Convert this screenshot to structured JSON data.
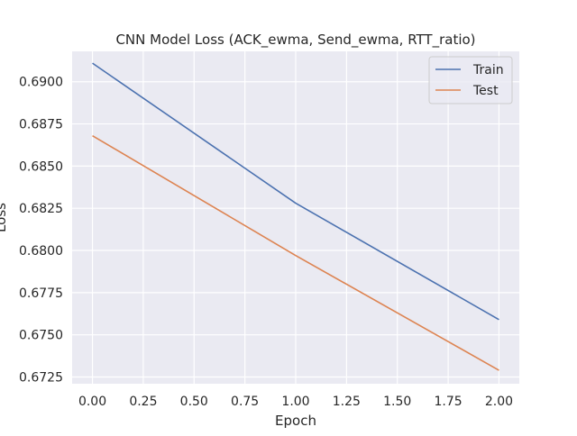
{
  "chart_data": {
    "type": "line",
    "title": "CNN Model Loss (ACK_ewma, Send_ewma, RTT_ratio)",
    "xlabel": "Epoch",
    "ylabel": "Loss",
    "x": [
      0,
      1,
      2
    ],
    "xlim": [
      -0.1,
      2.1
    ],
    "ylim": [
      0.6721,
      0.6918
    ],
    "xticks": [
      0.0,
      0.25,
      0.5,
      0.75,
      1.0,
      1.25,
      1.5,
      1.75,
      2.0
    ],
    "xtick_labels": [
      "0.00",
      "0.25",
      "0.50",
      "0.75",
      "1.00",
      "1.25",
      "1.50",
      "1.75",
      "2.00"
    ],
    "yticks": [
      0.6725,
      0.675,
      0.6775,
      0.68,
      0.6825,
      0.685,
      0.6875,
      0.69
    ],
    "ytick_labels": [
      "0.6725",
      "0.6750",
      "0.6775",
      "0.6800",
      "0.6825",
      "0.6850",
      "0.6875",
      "0.6900"
    ],
    "grid": true,
    "legend_position": "top-right",
    "series": [
      {
        "name": "Train",
        "color": "#4c72b0",
        "values": [
          0.6911,
          0.6828,
          0.6759
        ]
      },
      {
        "name": "Test",
        "color": "#dd8452",
        "values": [
          0.6868,
          0.6797,
          0.6729
        ]
      }
    ],
    "colors": {
      "plot_background": "#eaeaf2",
      "grid": "#ffffff",
      "text": "#262626"
    }
  }
}
